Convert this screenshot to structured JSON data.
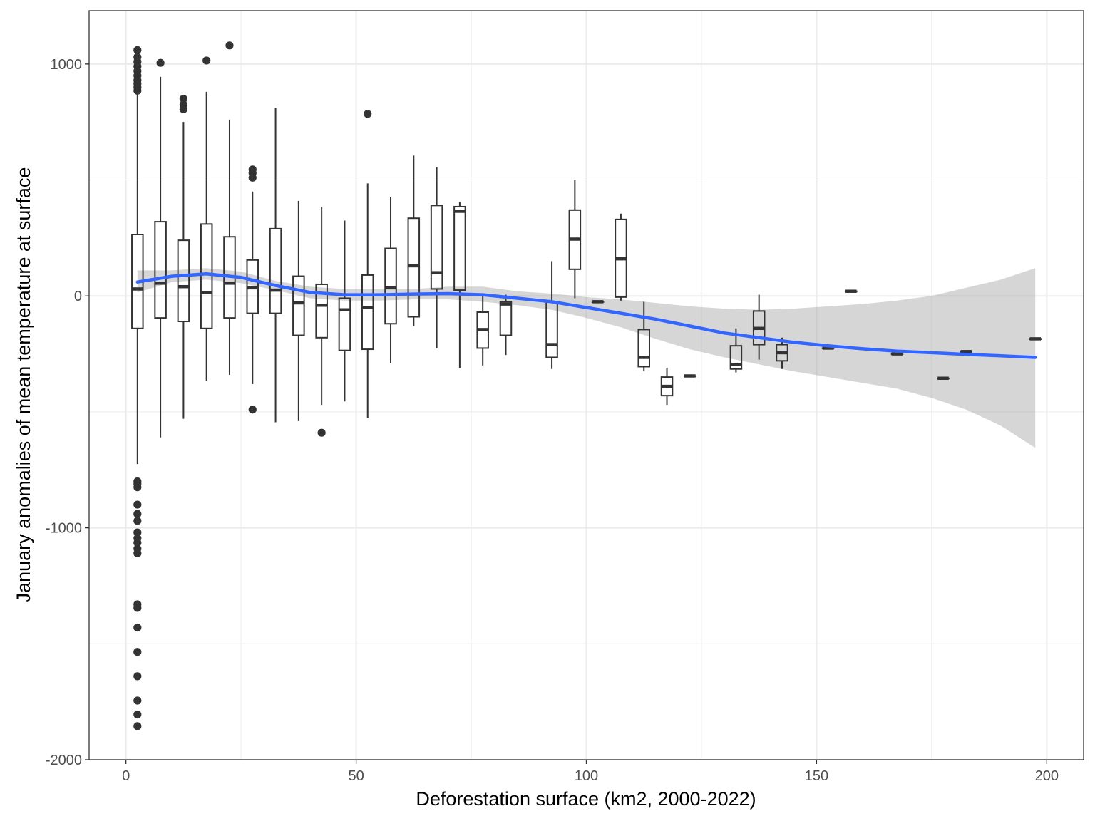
{
  "chart_data": {
    "type": "box+smooth",
    "xlabel": "Deforestation surface (km2, 2000-2022)",
    "ylabel": "January anomalies of mean temperature at surface",
    "xlim": [
      -8,
      208
    ],
    "ylim": [
      -2000,
      1230
    ],
    "x_ticks": [
      0,
      50,
      100,
      150,
      200
    ],
    "y_ticks": [
      -2000,
      -1000,
      0,
      1000
    ],
    "x_tick_labels": [
      "0",
      "50",
      "100",
      "150",
      "200"
    ],
    "y_tick_labels": [
      "-2000",
      "-1000",
      "0",
      "1000"
    ],
    "grid": true,
    "theme": "bw",
    "colors": {
      "smooth": "#3366ff",
      "ribbon": "#999999",
      "box": "#333333",
      "grid": "#ebebeb"
    },
    "boxes": [
      {
        "x": 2.5,
        "ymin": -725,
        "q1": -140,
        "median": 30,
        "q3": 265,
        "ymax": 1000
      },
      {
        "x": 7.5,
        "ymin": -610,
        "q1": -95,
        "median": 55,
        "q3": 320,
        "ymax": 945
      },
      {
        "x": 12.5,
        "ymin": -530,
        "q1": -110,
        "median": 40,
        "q3": 240,
        "ymax": 750
      },
      {
        "x": 17.5,
        "ymin": -365,
        "q1": -140,
        "median": 15,
        "q3": 310,
        "ymax": 880
      },
      {
        "x": 22.5,
        "ymin": -340,
        "q1": -95,
        "median": 55,
        "q3": 255,
        "ymax": 760
      },
      {
        "x": 27.5,
        "ymin": -380,
        "q1": -75,
        "median": 35,
        "q3": 155,
        "ymax": 450
      },
      {
        "x": 32.5,
        "ymin": -545,
        "q1": -75,
        "median": 25,
        "q3": 290,
        "ymax": 810
      },
      {
        "x": 37.5,
        "ymin": -540,
        "q1": -170,
        "median": -30,
        "q3": 85,
        "ymax": 410
      },
      {
        "x": 42.5,
        "ymin": -470,
        "q1": -180,
        "median": -40,
        "q3": 50,
        "ymax": 385
      },
      {
        "x": 47.5,
        "ymin": -455,
        "q1": -235,
        "median": -60,
        "q3": -10,
        "ymax": 325
      },
      {
        "x": 52.5,
        "ymin": -525,
        "q1": -230,
        "median": -50,
        "q3": 90,
        "ymax": 485
      },
      {
        "x": 57.5,
        "ymin": -290,
        "q1": -120,
        "median": 35,
        "q3": 205,
        "ymax": 425
      },
      {
        "x": 62.5,
        "ymin": -130,
        "q1": -90,
        "median": 130,
        "q3": 335,
        "ymax": 605
      },
      {
        "x": 67.5,
        "ymin": -225,
        "q1": 30,
        "median": 100,
        "q3": 390,
        "ymax": 555
      },
      {
        "x": 72.5,
        "ymin": -310,
        "q1": 25,
        "median": 365,
        "q3": 385,
        "ymax": 405
      },
      {
        "x": 77.5,
        "ymin": -300,
        "q1": -225,
        "median": -145,
        "q3": -70,
        "ymax": 0
      },
      {
        "x": 82.5,
        "ymin": -255,
        "q1": -170,
        "median": -35,
        "q3": -25,
        "ymax": 5
      },
      {
        "x": 92.5,
        "ymin": -315,
        "q1": -265,
        "median": -210,
        "q3": -25,
        "ymax": 150
      },
      {
        "x": 97.5,
        "ymin": -10,
        "q1": 115,
        "median": 245,
        "q3": 370,
        "ymax": 500
      },
      {
        "x": 102.5,
        "ymin": -25,
        "q1": -25,
        "median": -25,
        "q3": -25,
        "ymax": -25
      },
      {
        "x": 107.5,
        "ymin": -20,
        "q1": -5,
        "median": 160,
        "q3": 330,
        "ymax": 355
      },
      {
        "x": 112.5,
        "ymin": -325,
        "q1": -305,
        "median": -265,
        "q3": -145,
        "ymax": -25
      },
      {
        "x": 117.5,
        "ymin": -470,
        "q1": -430,
        "median": -390,
        "q3": -350,
        "ymax": -310
      },
      {
        "x": 122.5,
        "ymin": -345,
        "q1": -345,
        "median": -345,
        "q3": -345,
        "ymax": -345
      },
      {
        "x": 132.5,
        "ymin": -330,
        "q1": -315,
        "median": -295,
        "q3": -215,
        "ymax": -140
      },
      {
        "x": 137.5,
        "ymin": -275,
        "q1": -210,
        "median": -140,
        "q3": -65,
        "ymax": 5
      },
      {
        "x": 142.5,
        "ymin": -315,
        "q1": -280,
        "median": -245,
        "q3": -210,
        "ymax": -180
      },
      {
        "x": 152.5,
        "ymin": -225,
        "q1": -225,
        "median": -225,
        "q3": -225,
        "ymax": -225
      },
      {
        "x": 157.5,
        "ymin": 20,
        "q1": 20,
        "median": 20,
        "q3": 20,
        "ymax": 20
      },
      {
        "x": 167.5,
        "ymin": -250,
        "q1": -250,
        "median": -250,
        "q3": -250,
        "ymax": -250
      },
      {
        "x": 177.5,
        "ymin": -355,
        "q1": -355,
        "median": -355,
        "q3": -355,
        "ymax": -355
      },
      {
        "x": 182.5,
        "ymin": -240,
        "q1": -240,
        "median": -240,
        "q3": -240,
        "ymax": -240
      },
      {
        "x": 197.5,
        "ymin": -185,
        "q1": -185,
        "median": -185,
        "q3": -185,
        "ymax": -185
      }
    ],
    "outliers": [
      {
        "x": 2.5,
        "y": 1060
      },
      {
        "x": 2.5,
        "y": 1030
      },
      {
        "x": 2.5,
        "y": 1010
      },
      {
        "x": 2.5,
        "y": 990
      },
      {
        "x": 2.5,
        "y": 970
      },
      {
        "x": 2.5,
        "y": 950
      },
      {
        "x": 2.5,
        "y": 930
      },
      {
        "x": 2.5,
        "y": 915
      },
      {
        "x": 2.5,
        "y": 900
      },
      {
        "x": 2.5,
        "y": 885
      },
      {
        "x": 2.5,
        "y": -800
      },
      {
        "x": 2.5,
        "y": -810
      },
      {
        "x": 2.5,
        "y": -825
      },
      {
        "x": 2.5,
        "y": -900
      },
      {
        "x": 2.5,
        "y": -940
      },
      {
        "x": 2.5,
        "y": -970
      },
      {
        "x": 2.5,
        "y": -1020
      },
      {
        "x": 2.5,
        "y": -1045
      },
      {
        "x": 2.5,
        "y": -1065
      },
      {
        "x": 2.5,
        "y": -1090
      },
      {
        "x": 2.5,
        "y": -1110
      },
      {
        "x": 2.5,
        "y": -1330
      },
      {
        "x": 2.5,
        "y": -1345
      },
      {
        "x": 2.5,
        "y": -1430
      },
      {
        "x": 2.5,
        "y": -1535
      },
      {
        "x": 2.5,
        "y": -1640
      },
      {
        "x": 2.5,
        "y": -1745
      },
      {
        "x": 2.5,
        "y": -1805
      },
      {
        "x": 2.5,
        "y": -1855
      },
      {
        "x": 7.5,
        "y": 1005
      },
      {
        "x": 12.5,
        "y": 850
      },
      {
        "x": 12.5,
        "y": 825
      },
      {
        "x": 12.5,
        "y": 805
      },
      {
        "x": 17.5,
        "y": 1015
      },
      {
        "x": 22.5,
        "y": 1080
      },
      {
        "x": 27.5,
        "y": 545
      },
      {
        "x": 27.5,
        "y": 530
      },
      {
        "x": 27.5,
        "y": 510
      },
      {
        "x": 27.5,
        "y": -490
      },
      {
        "x": 42.5,
        "y": -590
      },
      {
        "x": 52.5,
        "y": 785
      }
    ],
    "smooth": {
      "x": [
        2.5,
        10,
        17.5,
        25,
        32.5,
        40,
        47.5,
        55,
        62.5,
        70,
        77.5,
        85,
        92.5,
        100,
        107.5,
        115,
        122.5,
        130,
        137.5,
        145,
        152.5,
        160,
        167.5,
        175,
        182.5,
        190,
        197.5
      ],
      "y": [
        60,
        85,
        95,
        80,
        45,
        15,
        5,
        5,
        8,
        10,
        5,
        -10,
        -25,
        -50,
        -75,
        -100,
        -130,
        -160,
        -180,
        -200,
        -215,
        -228,
        -238,
        -245,
        -252,
        -258,
        -265
      ],
      "ymin": [
        15,
        60,
        70,
        55,
        25,
        -10,
        -20,
        -20,
        -15,
        -15,
        -25,
        -40,
        -60,
        -95,
        -135,
        -185,
        -230,
        -265,
        -295,
        -325,
        -350,
        -375,
        -400,
        -440,
        -490,
        -560,
        -655
      ],
      "ymax": [
        110,
        110,
        120,
        105,
        65,
        40,
        30,
        30,
        30,
        40,
        40,
        20,
        10,
        -5,
        -15,
        -30,
        -45,
        -55,
        -60,
        -55,
        -45,
        -35,
        -20,
        0,
        35,
        70,
        120
      ]
    }
  }
}
